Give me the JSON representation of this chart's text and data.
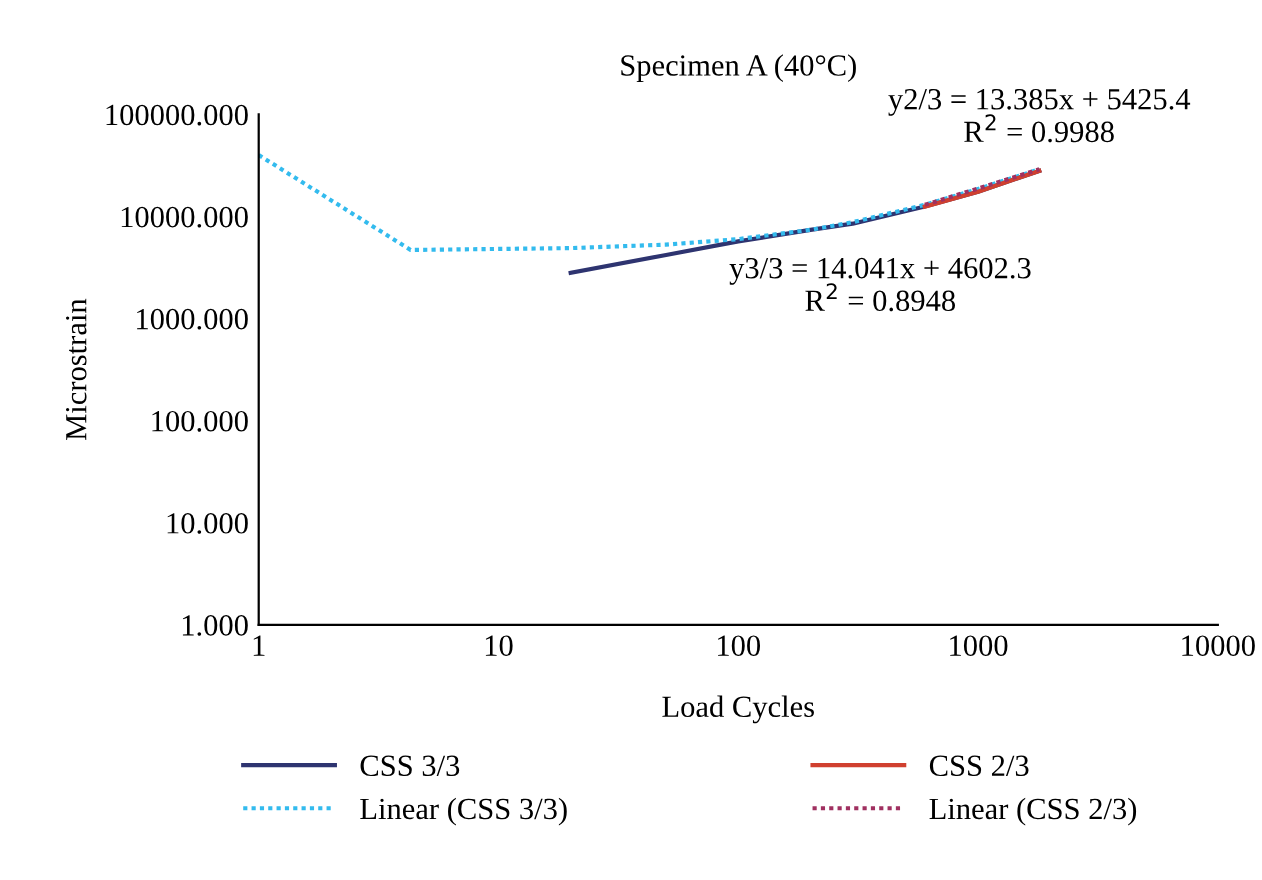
{
  "chart_data": {
    "type": "line",
    "title": "Specimen A (40°C)",
    "xlabel": "Load Cycles",
    "ylabel": "Microstrain",
    "log": "xy",
    "xlim": [
      1,
      10000
    ],
    "xticks": [
      1,
      10,
      100,
      1000,
      10000
    ],
    "ylim": [
      1,
      100000
    ],
    "yticks": [
      {
        "value": 1,
        "label": "1.000"
      },
      {
        "value": 10,
        "label": "10.000"
      },
      {
        "value": 100,
        "label": "100.000"
      },
      {
        "value": 1000,
        "label": "1000.000"
      },
      {
        "value": 10000,
        "label": "10000.000"
      },
      {
        "value": 100000,
        "label": "100000.000"
      }
    ],
    "grid": false,
    "legend": "bottom",
    "marker": "none",
    "series": [
      {
        "name": "CSS 3/3",
        "color": "#2e3470",
        "line_style": "solid",
        "x": [
          20,
          50,
          100,
          200,
          300,
          600,
          1000,
          1800
        ],
        "values": [
          2800,
          4200,
          5700,
          7400,
          8500,
          12500,
          17500,
          28000
        ]
      },
      {
        "name": "Linear (CSS 3/3)",
        "color": "#33bbee",
        "line_style": "dotted",
        "x": [
          1,
          4.3,
          20,
          50,
          100,
          200,
          300,
          600,
          1000,
          1800
        ],
        "values": [
          40000,
          4700,
          4900,
          5300,
          6000,
          7400,
          8800,
          13000,
          18600,
          29000
        ]
      },
      {
        "name": "CSS 2/3",
        "color": "#d0402f",
        "line_style": "solid",
        "x": [
          600,
          1000,
          1800
        ],
        "values": [
          12500,
          17500,
          28000
        ]
      },
      {
        "name": "Linear (CSS 2/3)",
        "color": "#a03060",
        "line_style": "dotted",
        "x": [
          600,
          1000,
          1800
        ],
        "values": [
          13000,
          18800,
          29000
        ]
      }
    ],
    "annotations": [
      {
        "text": "y2/3 = 13.385x + 5425.4\nR$^{2}$ = 0.9988",
        "x": 1800,
        "y": 28000
      },
      {
        "text": "y3/3 = 14.041x + 4602.3\nR$^{2}$ = 0.8948",
        "x": 300,
        "y": 8500
      }
    ]
  }
}
